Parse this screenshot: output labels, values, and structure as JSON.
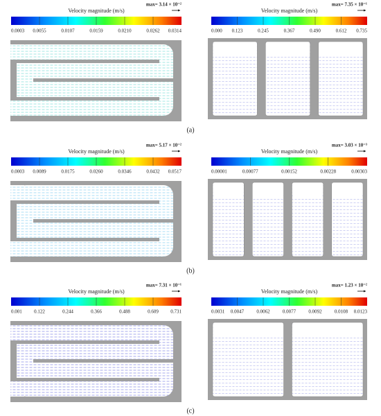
{
  "panels": [
    {
      "label": "(a)",
      "left": {
        "title": "Velocity magnitude (m/s)",
        "max": "max= 3.14 × 10⁻²",
        "ticks": [
          "0.0003",
          "0.0055",
          "0.0107",
          "0.0159",
          "0.0210",
          "0.0262",
          "0.0314"
        ]
      },
      "right": {
        "title": "Velocity magnitude (m/s)",
        "max": "max= 7.35 × 10⁻¹",
        "ticks": [
          "0.000",
          "0.123",
          "0.245",
          "0.367",
          "0.490",
          "0.612",
          "0.735"
        ]
      }
    },
    {
      "label": "(b)",
      "left": {
        "title": "Velocity magnitude (m/s)",
        "max": "max= 5.17 × 10⁻²",
        "ticks": [
          "0.0003",
          "0.0089",
          "0.0175",
          "0.0260",
          "0.0346",
          "0.0432",
          "0.0517"
        ]
      },
      "right": {
        "title": "Velocity magnitude (m/s)",
        "max": "max= 3.03 × 10⁻³",
        "ticks": [
          "0.00001",
          "0.00077",
          "0.00152",
          "0.00228",
          "0.00303"
        ]
      }
    },
    {
      "label": "(c)",
      "left": {
        "title": "Velocity magnitude (m/s)",
        "max": "max= 7.31 × 10⁻¹",
        "ticks": [
          "0.001",
          "0.122",
          "0.244",
          "0.366",
          "0.488",
          "0.609",
          "0.731"
        ]
      },
      "right": {
        "title": "Velocity magnitude (m/s)",
        "max": "max= 1.23 × 10⁻²",
        "ticks": [
          "0.0031",
          "0.0047",
          "0.0062",
          "0.0077",
          "0.0092",
          "0.0108",
          "0.0123"
        ]
      }
    }
  ]
}
